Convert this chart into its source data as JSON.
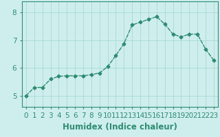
{
  "x": [
    0,
    1,
    2,
    3,
    4,
    5,
    6,
    7,
    8,
    9,
    10,
    11,
    12,
    13,
    14,
    15,
    16,
    17,
    18,
    19,
    20,
    21,
    22,
    23
  ],
  "y": [
    5.0,
    5.3,
    5.3,
    5.6,
    5.7,
    5.72,
    5.72,
    5.72,
    5.76,
    5.82,
    6.05,
    6.45,
    6.88,
    7.55,
    7.65,
    7.75,
    7.85,
    7.58,
    7.22,
    7.12,
    7.22,
    7.22,
    6.68,
    6.28
  ],
  "line_color": "#2e8b72",
  "marker": "D",
  "marker_size": 2.5,
  "background_color": "#ceeeed",
  "grid_color": "#a8d8d5",
  "xlabel": "Humidex (Indice chaleur)",
  "xlim": [
    -0.5,
    23.5
  ],
  "ylim": [
    4.6,
    8.4
  ],
  "yticks": [
    5,
    6,
    7,
    8
  ],
  "xticks": [
    0,
    1,
    2,
    3,
    4,
    5,
    6,
    7,
    8,
    9,
    10,
    11,
    12,
    13,
    14,
    15,
    16,
    17,
    18,
    19,
    20,
    21,
    22,
    23
  ],
  "xlabel_fontsize": 8.5,
  "tick_fontsize": 7.5,
  "line_width": 1.0
}
